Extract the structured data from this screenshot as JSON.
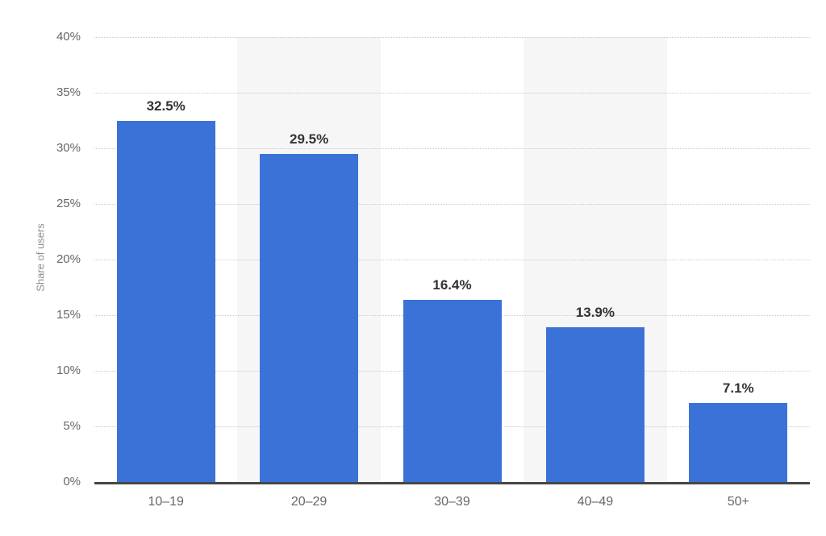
{
  "chart_data": {
    "type": "bar",
    "title": "",
    "xlabel": "",
    "ylabel": "Share of users",
    "categories": [
      "10–19",
      "20–29",
      "30–39",
      "40–49",
      "50+"
    ],
    "values": [
      32.5,
      29.5,
      16.4,
      13.9,
      7.1
    ],
    "value_labels": [
      "32.5%",
      "29.5%",
      "16.4%",
      "13.9%",
      "7.1%"
    ],
    "ylim": [
      0,
      40
    ],
    "ytick_step": 5,
    "ytick_labels": [
      "0%",
      "5%",
      "10%",
      "15%",
      "20%",
      "25%",
      "30%",
      "35%",
      "40%"
    ],
    "grid": "horizontal-dotted",
    "legend": "none",
    "band_pattern": "alternating columns, even columns white, odd columns light gray",
    "colors": {
      "bar": "#3B72D8",
      "band_alt": "#f6f6f6",
      "gridline": "#c9c9c9",
      "axis_line": "#474747",
      "tick_label": "#666666",
      "value_label": "#333333",
      "axis_title": "#8e8e8e",
      "background": "#ffffff"
    }
  }
}
